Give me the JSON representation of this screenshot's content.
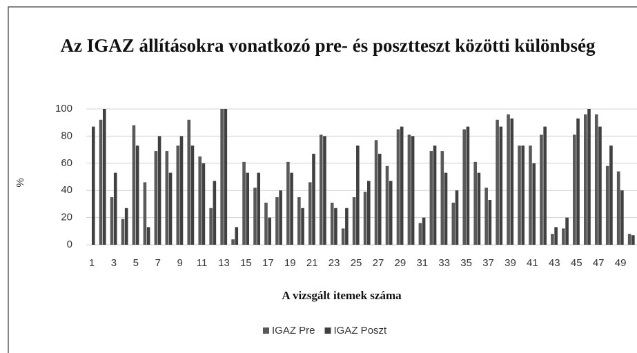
{
  "chart_data": {
    "type": "bar",
    "title": "Az IGAZ állításokra vonatkozó pre- és posztteszt közötti különbség",
    "y_label": "%",
    "x_label": "A vizsgált itemek száma",
    "categories": [
      1,
      null,
      3,
      null,
      5,
      null,
      7,
      null,
      9,
      null,
      11,
      null,
      13,
      null,
      15,
      null,
      17,
      null,
      19,
      null,
      21,
      null,
      23,
      null,
      25,
      null,
      27,
      null,
      29,
      null,
      31,
      null,
      33,
      null,
      35,
      null,
      37,
      null,
      39,
      null,
      41,
      null,
      43,
      null,
      45,
      null,
      47,
      null,
      49,
      null
    ],
    "series": [
      {
        "name": "IGAZ Pre",
        "color": "#595959",
        "values": [
          0,
          92,
          35,
          19,
          88,
          46,
          69,
          69,
          73,
          92,
          65,
          27,
          100,
          4,
          61,
          42,
          31,
          35,
          61,
          35,
          46,
          81,
          31,
          12,
          35,
          39,
          77,
          58,
          85,
          81,
          16,
          69,
          69,
          31,
          85,
          61,
          42,
          92,
          96,
          73,
          73,
          81,
          8,
          12,
          81,
          96,
          96,
          58,
          54,
          8
        ]
      },
      {
        "name": "IGAZ Poszt",
        "color": "#404040",
        "values": [
          87,
          100,
          53,
          27,
          73,
          13,
          80,
          53,
          80,
          73,
          60,
          47,
          100,
          13,
          53,
          53,
          20,
          40,
          53,
          27,
          67,
          80,
          27,
          27,
          73,
          47,
          67,
          47,
          87,
          80,
          20,
          73,
          53,
          40,
          87,
          53,
          33,
          87,
          93,
          73,
          60,
          87,
          13,
          20,
          93,
          100,
          87,
          73,
          40,
          7
        ]
      }
    ],
    "ylim": [
      0,
      100
    ],
    "yticks": [
      0,
      20,
      40,
      60,
      80,
      100
    ],
    "grid": true,
    "legend": "bottom"
  }
}
